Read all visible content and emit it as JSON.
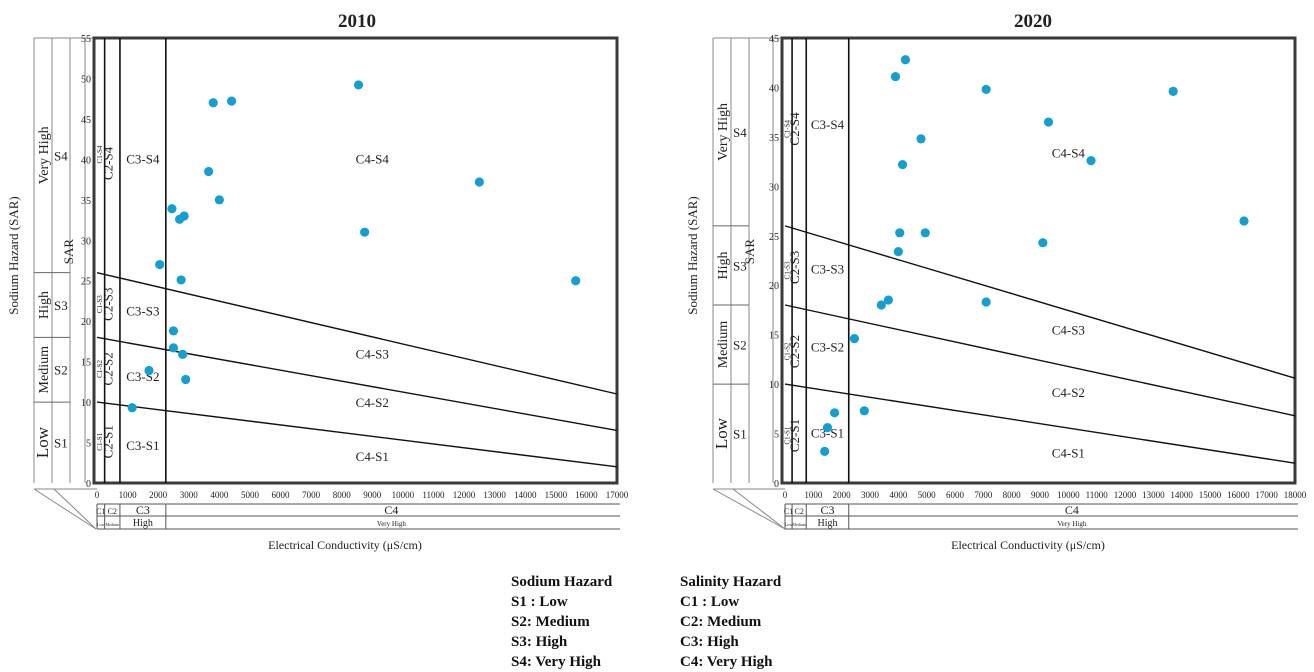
{
  "chart_data": [
    {
      "type": "scatter",
      "title": "2010",
      "xlabel": "Electrical Conductivity (μS/cm)",
      "ylabel": "Sodium Hazard (SAR)",
      "sar_axis_label": "SAR",
      "xlim": [
        0,
        17000
      ],
      "ylim": [
        0,
        55
      ],
      "x_ticks": [
        0,
        1000,
        2000,
        3000,
        4000,
        5000,
        6000,
        7000,
        8000,
        9000,
        10000,
        11000,
        12000,
        13000,
        14000,
        15000,
        16000,
        17000
      ],
      "y_ticks": [
        0,
        5,
        10,
        15,
        20,
        25,
        30,
        35,
        40,
        45,
        50,
        55
      ],
      "grid": false,
      "ec_class_boundaries": [
        250,
        750,
        2250
      ],
      "sar_lines": [
        {
          "name": "S1/S2",
          "y0": 10,
          "y1": 2
        },
        {
          "name": "S2/S3",
          "y0": 18,
          "y1": 6.5
        },
        {
          "name": "S3/S4",
          "y0": 26,
          "y1": 11
        }
      ],
      "sodium_classes": [
        {
          "label": "S1",
          "hazard": "Low",
          "range": [
            0,
            10
          ]
        },
        {
          "label": "S2",
          "hazard": "Medium",
          "range": [
            10,
            18
          ]
        },
        {
          "label": "S3",
          "hazard": "High",
          "range": [
            18,
            26
          ]
        },
        {
          "label": "S4",
          "hazard": "Very High",
          "range": [
            26,
            55
          ]
        }
      ],
      "salinity_classes": [
        {
          "label": "C1",
          "hazard": "Low",
          "range": [
            0,
            250
          ]
        },
        {
          "label": "C2",
          "hazard": "Medium",
          "range": [
            250,
            750
          ]
        },
        {
          "label": "C3",
          "hazard": "High",
          "range": [
            750,
            2250
          ]
        },
        {
          "label": "C4",
          "hazard": "Very High",
          "range": [
            2250,
            17000
          ]
        }
      ],
      "region_labels": [
        {
          "text": "C3-S4",
          "x": 1500,
          "y": 39.5
        },
        {
          "text": "C3-S3",
          "x": 1500,
          "y": 20.7
        },
        {
          "text": "C3-S2",
          "x": 1500,
          "y": 12.6
        },
        {
          "text": "C3-S1",
          "x": 1500,
          "y": 4.1
        },
        {
          "text": "C4-S4",
          "x": 9000,
          "y": 39.5
        },
        {
          "text": "C4-S3",
          "x": 9000,
          "y": 15.4
        },
        {
          "text": "C4-S2",
          "x": 9000,
          "y": 9.4
        },
        {
          "text": "C4-S1",
          "x": 9000,
          "y": 2.7
        },
        {
          "text": "C2-S4",
          "x": 500,
          "y": 39.5,
          "vertical": true
        },
        {
          "text": "C2-S3",
          "x": 500,
          "y": 22.1,
          "vertical": true
        },
        {
          "text": "C2-S2",
          "x": 500,
          "y": 14.1,
          "vertical": true
        },
        {
          "text": "C2-S1",
          "x": 500,
          "y": 5.1,
          "vertical": true
        },
        {
          "text": "C1-S4",
          "x": 160,
          "y": 40.6,
          "vertical": true,
          "small": true
        },
        {
          "text": "C1-S3",
          "x": 160,
          "y": 22.1,
          "vertical": true,
          "small": true
        },
        {
          "text": "C1-S2",
          "x": 160,
          "y": 14.1,
          "vertical": true,
          "small": true
        },
        {
          "text": "C1-S1",
          "x": 160,
          "y": 5.1,
          "vertical": true,
          "small": true
        }
      ],
      "x": [
        1150,
        1700,
        2050,
        2450,
        2500,
        2500,
        2700,
        2750,
        2800,
        2850,
        2900,
        3650,
        3800,
        4000,
        4400,
        8550,
        8750,
        12500,
        15650
      ],
      "y": [
        9.3,
        13.9,
        27.0,
        33.9,
        18.8,
        16.7,
        32.6,
        25.1,
        15.9,
        33.0,
        12.8,
        38.5,
        47.0,
        35.0,
        47.2,
        49.2,
        31.0,
        37.2,
        25.0
      ]
    },
    {
      "type": "scatter",
      "title": "2020",
      "xlabel": "Electrical Conductivity (μS/cm)",
      "ylabel": "Sodium Hazard (SAR)",
      "sar_axis_label": "SAR",
      "xlim": [
        0,
        18000
      ],
      "ylim": [
        0,
        45
      ],
      "x_ticks": [
        0,
        1000,
        2000,
        3000,
        4000,
        5000,
        6000,
        7000,
        8000,
        9000,
        10000,
        11000,
        12000,
        13000,
        14000,
        15000,
        16000,
        17000,
        18000
      ],
      "y_ticks": [
        0,
        5,
        10,
        15,
        20,
        25,
        30,
        35,
        40,
        45
      ],
      "grid": false,
      "ec_class_boundaries": [
        250,
        750,
        2250
      ],
      "sar_lines": [
        {
          "name": "S1/S2",
          "y0": 10,
          "y1": 2
        },
        {
          "name": "S2/S3",
          "y0": 18,
          "y1": 6.8
        },
        {
          "name": "S3/S4",
          "y0": 26,
          "y1": 10.6
        }
      ],
      "sodium_classes": [
        {
          "label": "S1",
          "hazard": "Low",
          "range": [
            0,
            10
          ]
        },
        {
          "label": "S2",
          "hazard": "Medium",
          "range": [
            10,
            18
          ]
        },
        {
          "label": "S3",
          "hazard": "High",
          "range": [
            18,
            26
          ]
        },
        {
          "label": "S4",
          "hazard": "Very High",
          "range": [
            26,
            45
          ]
        }
      ],
      "salinity_classes": [
        {
          "label": "C1",
          "hazard": "Low",
          "range": [
            0,
            250
          ]
        },
        {
          "label": "C2",
          "hazard": "Medium",
          "range": [
            250,
            750
          ]
        },
        {
          "label": "C3",
          "hazard": "High",
          "range": [
            750,
            2250
          ]
        },
        {
          "label": "C4",
          "hazard": "Very High",
          "range": [
            2250,
            18000
          ]
        }
      ],
      "region_labels": [
        {
          "text": "C3-S4",
          "x": 1500,
          "y": 35.8
        },
        {
          "text": "C3-S3",
          "x": 1500,
          "y": 21.2
        },
        {
          "text": "C3-S2",
          "x": 1500,
          "y": 13.3
        },
        {
          "text": "C3-S1",
          "x": 1500,
          "y": 4.6
        },
        {
          "text": "C4-S4",
          "x": 10000,
          "y": 32.9
        },
        {
          "text": "C4-S3",
          "x": 10000,
          "y": 15.0
        },
        {
          "text": "C4-S2",
          "x": 10000,
          "y": 8.7
        },
        {
          "text": "C4-S1",
          "x": 10000,
          "y": 2.6
        },
        {
          "text": "C2-S4",
          "x": 500,
          "y": 35.8,
          "vertical": true
        },
        {
          "text": "C2-S3",
          "x": 500,
          "y": 21.8,
          "vertical": true
        },
        {
          "text": "C2-S2",
          "x": 500,
          "y": 13.3,
          "vertical": true
        },
        {
          "text": "C2-S1",
          "x": 500,
          "y": 4.8,
          "vertical": true
        },
        {
          "text": "C1-S4",
          "x": 160,
          "y": 35.8,
          "vertical": true,
          "small": true
        },
        {
          "text": "C1-S3",
          "x": 160,
          "y": 21.5,
          "vertical": true,
          "small": true
        },
        {
          "text": "C1-S2",
          "x": 160,
          "y": 13.3,
          "vertical": true,
          "small": true
        },
        {
          "text": "C1-S1",
          "x": 160,
          "y": 4.8,
          "vertical": true,
          "small": true
        }
      ],
      "x": [
        1400,
        1500,
        1750,
        2450,
        2800,
        3400,
        3650,
        3900,
        4000,
        4050,
        4150,
        4250,
        4800,
        4950,
        7100,
        7100,
        9100,
        9300,
        10800,
        13700,
        16200
      ],
      "y": [
        3.2,
        5.6,
        7.1,
        14.6,
        7.3,
        18.0,
        18.5,
        41.1,
        23.4,
        25.3,
        32.2,
        42.8,
        34.8,
        25.3,
        18.3,
        39.8,
        24.3,
        36.5,
        32.6,
        39.6,
        26.5
      ]
    }
  ],
  "legend": {
    "sodium_title": "Sodium Hazard",
    "sodium_items": [
      "S1 : Low",
      "S2: Medium",
      "S3: High",
      "S4: Very High"
    ],
    "salinity_title": "Salinity Hazard",
    "salinity_items": [
      "C1 : Low",
      "C2: Medium",
      "C3: High",
      "C4: Very High"
    ]
  },
  "colors": {
    "point": "#159fcf",
    "frame": "#3a3a3a",
    "lines": "#111111"
  }
}
